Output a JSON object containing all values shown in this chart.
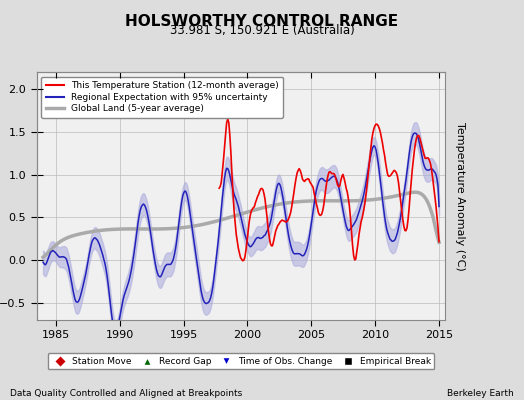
{
  "title": "HOLSWORTHY CONTROL RANGE",
  "subtitle": "33.981 S, 150.921 E (Australia)",
  "ylabel": "Temperature Anomaly (°C)",
  "xlabel_left": "Data Quality Controlled and Aligned at Breakpoints",
  "xlabel_right": "Berkeley Earth",
  "ylim": [
    -0.7,
    2.2
  ],
  "xlim": [
    1983.5,
    2015.5
  ],
  "yticks": [
    -0.5,
    0,
    0.5,
    1,
    1.5,
    2
  ],
  "xticks": [
    1985,
    1990,
    1995,
    2000,
    2005,
    2010,
    2015
  ],
  "red_color": "#EE0000",
  "blue_color": "#2222BB",
  "blue_fill_color": "#AAAADD",
  "gray_color": "#AAAAAA",
  "bg_color": "#DDDDDD",
  "plot_bg_color": "#F0F0F0",
  "grid_color": "#BBBBBB",
  "legend_items": [
    {
      "label": "This Temperature Station (12-month average)",
      "color": "#EE0000",
      "lw": 1.5
    },
    {
      "label": "Regional Expectation with 95% uncertainty",
      "color": "#2222BB",
      "lw": 1.5
    },
    {
      "label": "Global Land (5-year average)",
      "color": "#AAAAAA",
      "lw": 2.5
    }
  ],
  "marker_legend": [
    {
      "label": "Station Move",
      "color": "#CC0000",
      "marker": "D"
    },
    {
      "label": "Record Gap",
      "color": "#006600",
      "marker": "^"
    },
    {
      "label": "Time of Obs. Change",
      "color": "#0000CC",
      "marker": "v"
    },
    {
      "label": "Empirical Break",
      "color": "#000000",
      "marker": "s"
    }
  ]
}
